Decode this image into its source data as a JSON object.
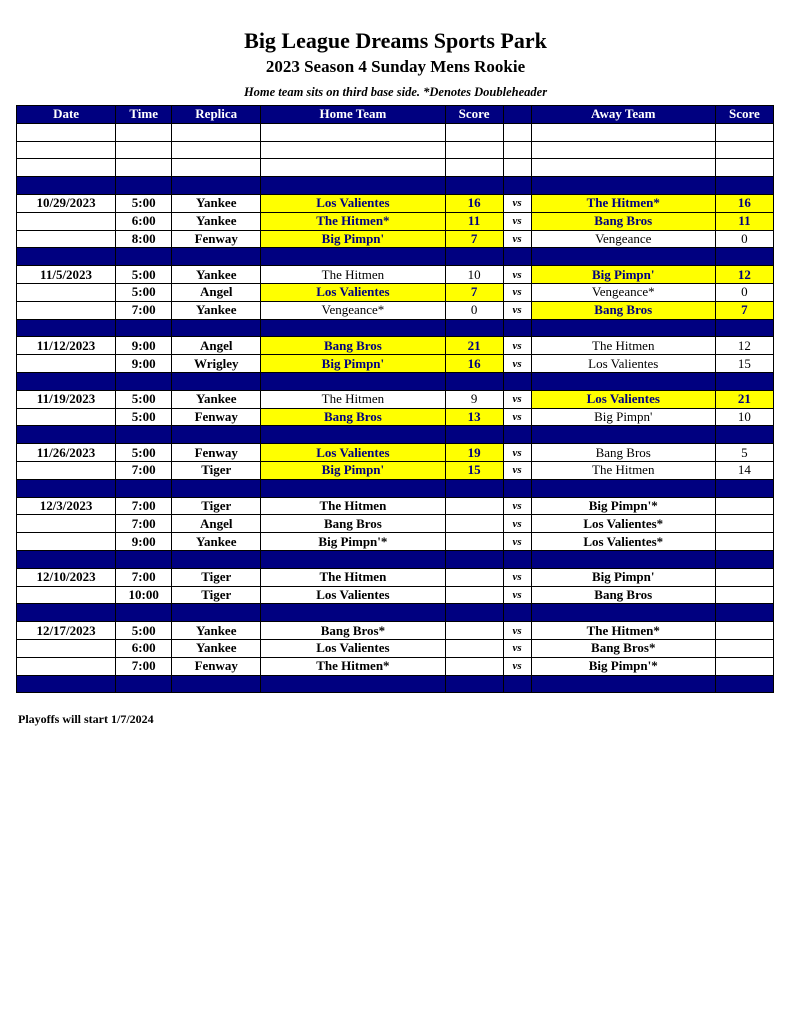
{
  "title": "Big League Dreams Sports Park",
  "subtitle": "2023 Season 4 Sunday Mens Rookie",
  "note": "Home team sits on third base side.  *Denotes Doubleheader",
  "headers": [
    "Date",
    "Time",
    "Replica",
    "Home Team",
    "Score",
    "",
    "Away Team",
    "Score"
  ],
  "highlight_color": "#ffff00",
  "header_color": "#000080",
  "rows": [
    {
      "type": "blank"
    },
    {
      "type": "blank"
    },
    {
      "type": "blank"
    },
    {
      "type": "sep"
    },
    {
      "date": "10/29/2023",
      "time": "5:00",
      "field": "Yankee",
      "home": "Los Valientes",
      "hs": "16",
      "vs": "vs",
      "away": "The Hitmen*",
      "as": "16",
      "hw": true,
      "aw": true
    },
    {
      "date": "",
      "time": "6:00",
      "field": "Yankee",
      "home": "The Hitmen*",
      "hs": "11",
      "vs": "vs",
      "away": "Bang Bros",
      "as": "11",
      "hw": true,
      "aw": true
    },
    {
      "date": "",
      "time": "8:00",
      "field": "Fenway",
      "home": "Big Pimpn'",
      "hs": "7",
      "vs": "vs",
      "away": "Vengeance",
      "as": "0",
      "hw": true,
      "aw": false
    },
    {
      "type": "sep"
    },
    {
      "date": "11/5/2023",
      "time": "5:00",
      "field": "Yankee",
      "home": "The Hitmen",
      "hs": "10",
      "vs": "vs",
      "away": "Big Pimpn'",
      "as": "12",
      "hw": false,
      "aw": true
    },
    {
      "date": "",
      "time": "5:00",
      "field": "Angel",
      "home": "Los Valientes",
      "hs": "7",
      "vs": "vs",
      "away": "Vengeance*",
      "as": "0",
      "hw": true,
      "aw": false
    },
    {
      "date": "",
      "time": "7:00",
      "field": "Yankee",
      "home": "Vengeance*",
      "hs": "0",
      "vs": "vs",
      "away": "Bang Bros",
      "as": "7",
      "hw": false,
      "aw": true
    },
    {
      "type": "sep"
    },
    {
      "date": "11/12/2023",
      "time": "9:00",
      "field": "Angel",
      "home": "Bang Bros",
      "hs": "21",
      "vs": "vs",
      "away": "The Hitmen",
      "as": "12",
      "hw": true,
      "aw": false
    },
    {
      "date": "",
      "time": "9:00",
      "field": "Wrigley",
      "home": "Big Pimpn'",
      "hs": "16",
      "vs": "vs",
      "away": "Los Valientes",
      "as": "15",
      "hw": true,
      "aw": false
    },
    {
      "type": "sep"
    },
    {
      "date": "11/19/2023",
      "time": "5:00",
      "field": "Yankee",
      "home": "The Hitmen",
      "hs": "9",
      "vs": "vs",
      "away": "Los Valientes",
      "as": "21",
      "hw": false,
      "aw": true
    },
    {
      "date": "",
      "time": "5:00",
      "field": "Fenway",
      "home": "Bang Bros",
      "hs": "13",
      "vs": "vs",
      "away": "Big Pimpn'",
      "as": "10",
      "hw": true,
      "aw": false
    },
    {
      "type": "sep"
    },
    {
      "date": "11/26/2023",
      "time": "5:00",
      "field": "Fenway",
      "home": "Los Valientes",
      "hs": "19",
      "vs": "vs",
      "away": "Bang Bros",
      "as": "5",
      "hw": true,
      "aw": false
    },
    {
      "date": "",
      "time": "7:00",
      "field": "Tiger",
      "home": "Big Pimpn'",
      "hs": "15",
      "vs": "vs",
      "away": "The Hitmen",
      "as": "14",
      "hw": true,
      "aw": false
    },
    {
      "type": "sep"
    },
    {
      "date": "12/3/2023",
      "time": "7:00",
      "field": "Tiger",
      "home": "The Hitmen",
      "hs": "",
      "vs": "vs",
      "away": "Big Pimpn'*",
      "as": "",
      "up": true
    },
    {
      "date": "",
      "time": "7:00",
      "field": "Angel",
      "home": "Bang Bros",
      "hs": "",
      "vs": "vs",
      "away": "Los Valientes*",
      "as": "",
      "up": true
    },
    {
      "date": "",
      "time": "9:00",
      "field": "Yankee",
      "home": "Big Pimpn'*",
      "hs": "",
      "vs": "vs",
      "away": "Los Valientes*",
      "as": "",
      "up": true
    },
    {
      "type": "sep"
    },
    {
      "date": "12/10/2023",
      "time": "7:00",
      "field": "Tiger",
      "home": "The Hitmen",
      "hs": "",
      "vs": "vs",
      "away": "Big Pimpn'",
      "as": "",
      "up": true
    },
    {
      "date": "",
      "time": "10:00",
      "field": "Tiger",
      "home": "Los Valientes",
      "hs": "",
      "vs": "vs",
      "away": "Bang Bros",
      "as": "",
      "up": true
    },
    {
      "type": "sep"
    },
    {
      "date": "12/17/2023",
      "time": "5:00",
      "field": "Yankee",
      "home": "Bang Bros*",
      "hs": "",
      "vs": "vs",
      "away": "The Hitmen*",
      "as": "",
      "up": true
    },
    {
      "date": "",
      "time": "6:00",
      "field": "Yankee",
      "home": "Los Valientes",
      "hs": "",
      "vs": "vs",
      "away": "Bang Bros*",
      "as": "",
      "up": true
    },
    {
      "date": "",
      "time": "7:00",
      "field": "Fenway",
      "home": "The Hitmen*",
      "hs": "",
      "vs": "vs",
      "away": "Big Pimpn'*",
      "as": "",
      "up": true
    },
    {
      "type": "sep"
    }
  ],
  "footer": "Playoffs will start 1/7/2024"
}
